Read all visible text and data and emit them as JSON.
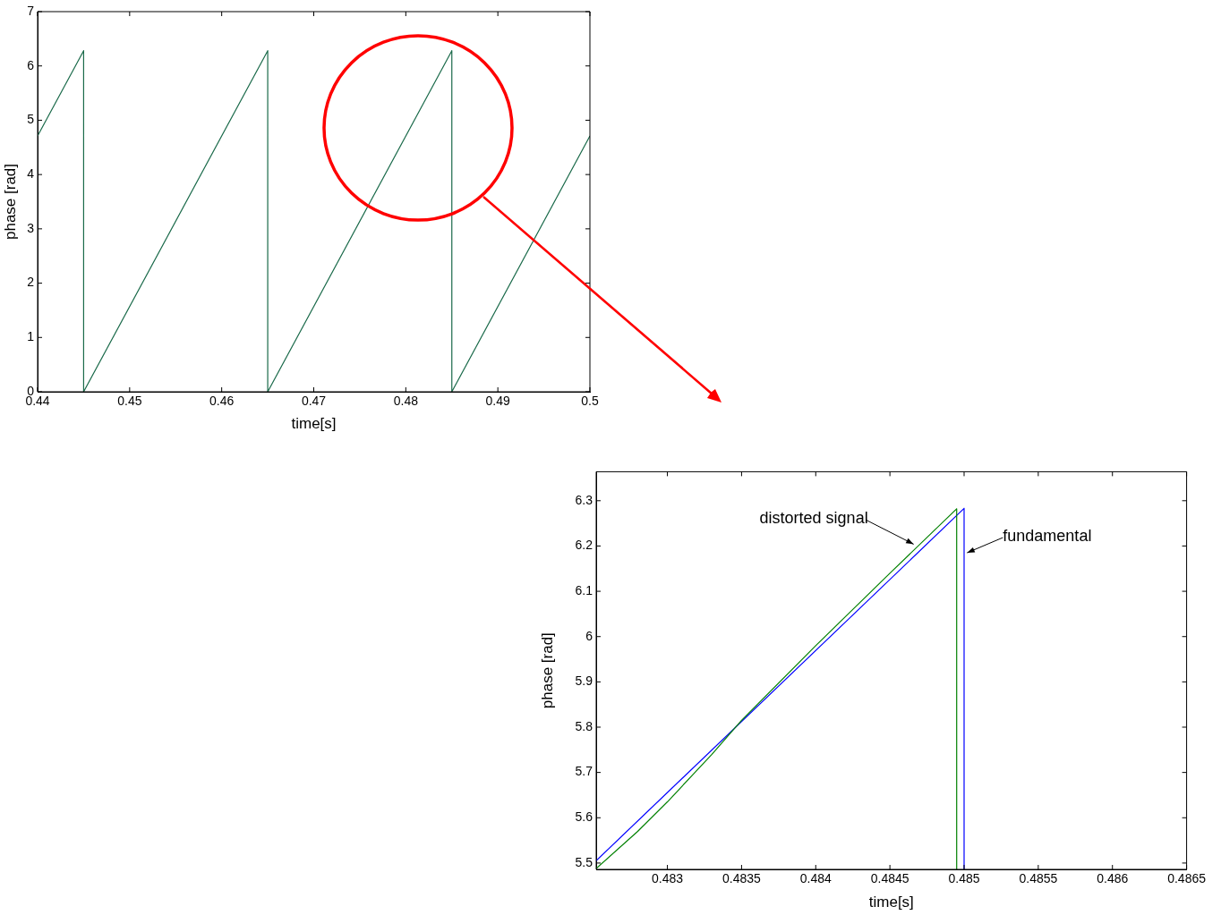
{
  "chart_data": [
    {
      "type": "line",
      "xlabel": "time[s]",
      "ylabel": "phase [rad]",
      "xlim": [
        0.44,
        0.5
      ],
      "ylim": [
        0,
        7
      ],
      "xticks": [
        0.44,
        0.45,
        0.46,
        0.47,
        0.48,
        0.49,
        0.5
      ],
      "yticks": [
        0,
        1,
        2,
        3,
        4,
        5,
        6,
        7
      ],
      "series": [
        {
          "color": "#1a6a4a",
          "x": [
            0.44,
            0.445,
            0.445,
            0.465,
            0.465,
            0.485,
            0.485,
            0.5
          ],
          "values": [
            4.71,
            6.28,
            0,
            6.28,
            0,
            6.28,
            0,
            4.71
          ]
        }
      ]
    },
    {
      "type": "line",
      "xlabel": "time[s]",
      "ylabel": "phase [rad]",
      "xlim": [
        0.48252,
        0.4865
      ],
      "ylim": [
        5.486,
        6.364
      ],
      "xticks": [
        0.483,
        0.4835,
        0.484,
        0.4845,
        0.485,
        0.4855,
        0.486,
        0.4865
      ],
      "yticks": [
        5.5,
        5.6,
        5.7,
        5.8,
        5.9,
        6,
        6.1,
        6.2,
        6.3
      ],
      "series": [
        {
          "color": "#008000",
          "x": [
            0.48252,
            0.4828,
            0.483,
            0.4833,
            0.4835,
            0.484,
            0.4845,
            0.48495,
            0.48495
          ],
          "values": [
            5.488,
            5.57,
            5.635,
            5.74,
            5.815,
            5.98,
            6.14,
            6.282,
            5.486
          ]
        },
        {
          "color": "#0000ff",
          "x": [
            0.48252,
            0.485,
            0.485
          ],
          "values": [
            5.505,
            6.283,
            5.486
          ]
        }
      ],
      "annotations": [
        {
          "text": "distorted signal",
          "x": 0.48466,
          "y": 6.204
        },
        {
          "text": "fundamental",
          "x": 0.48502,
          "y": 6.185
        }
      ]
    }
  ]
}
